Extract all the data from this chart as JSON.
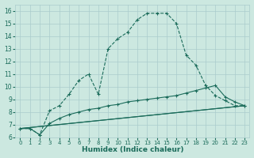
{
  "xlabel": "Humidex (Indice chaleur)",
  "bg_color": "#cce8e0",
  "grid_color": "#aacccc",
  "line_color": "#1a6b5a",
  "xlim": [
    -0.5,
    23.5
  ],
  "ylim": [
    6,
    16.5
  ],
  "xticks": [
    0,
    1,
    2,
    3,
    4,
    5,
    6,
    7,
    8,
    9,
    10,
    11,
    12,
    13,
    14,
    15,
    16,
    17,
    18,
    19,
    20,
    21,
    22,
    23
  ],
  "yticks": [
    6,
    7,
    8,
    9,
    10,
    11,
    12,
    13,
    14,
    15,
    16
  ],
  "series": [
    {
      "x": [
        0,
        1,
        2,
        3,
        4,
        5,
        6,
        7,
        8,
        9,
        10,
        11,
        12,
        13,
        14,
        15,
        16,
        17,
        18,
        19,
        20,
        21,
        22,
        23
      ],
      "y": [
        6.7,
        6.7,
        6.2,
        8.1,
        8.5,
        9.4,
        10.5,
        11.0,
        9.4,
        13.0,
        13.8,
        14.3,
        15.3,
        15.8,
        15.8,
        15.8,
        15.0,
        12.5,
        11.7,
        10.1,
        9.3,
        8.9,
        8.5,
        8.5
      ],
      "marker": true,
      "linestyle": "--"
    },
    {
      "x": [
        0,
        1,
        2,
        3,
        4,
        5,
        6,
        7,
        8,
        9,
        10,
        11,
        12,
        13,
        14,
        15,
        16,
        17,
        18,
        19,
        20,
        21,
        22,
        23
      ],
      "y": [
        6.7,
        6.7,
        6.2,
        7.1,
        7.5,
        7.8,
        8.0,
        8.2,
        8.3,
        8.5,
        8.6,
        8.8,
        8.9,
        9.0,
        9.1,
        9.2,
        9.3,
        9.5,
        9.7,
        9.9,
        10.1,
        9.2,
        8.8,
        8.5
      ],
      "marker": true,
      "linestyle": "-"
    },
    {
      "x": [
        0,
        23
      ],
      "y": [
        6.7,
        8.5
      ],
      "marker": false,
      "linestyle": "-"
    },
    {
      "x": [
        0,
        23
      ],
      "y": [
        6.7,
        8.5
      ],
      "marker": false,
      "linestyle": "-"
    }
  ]
}
